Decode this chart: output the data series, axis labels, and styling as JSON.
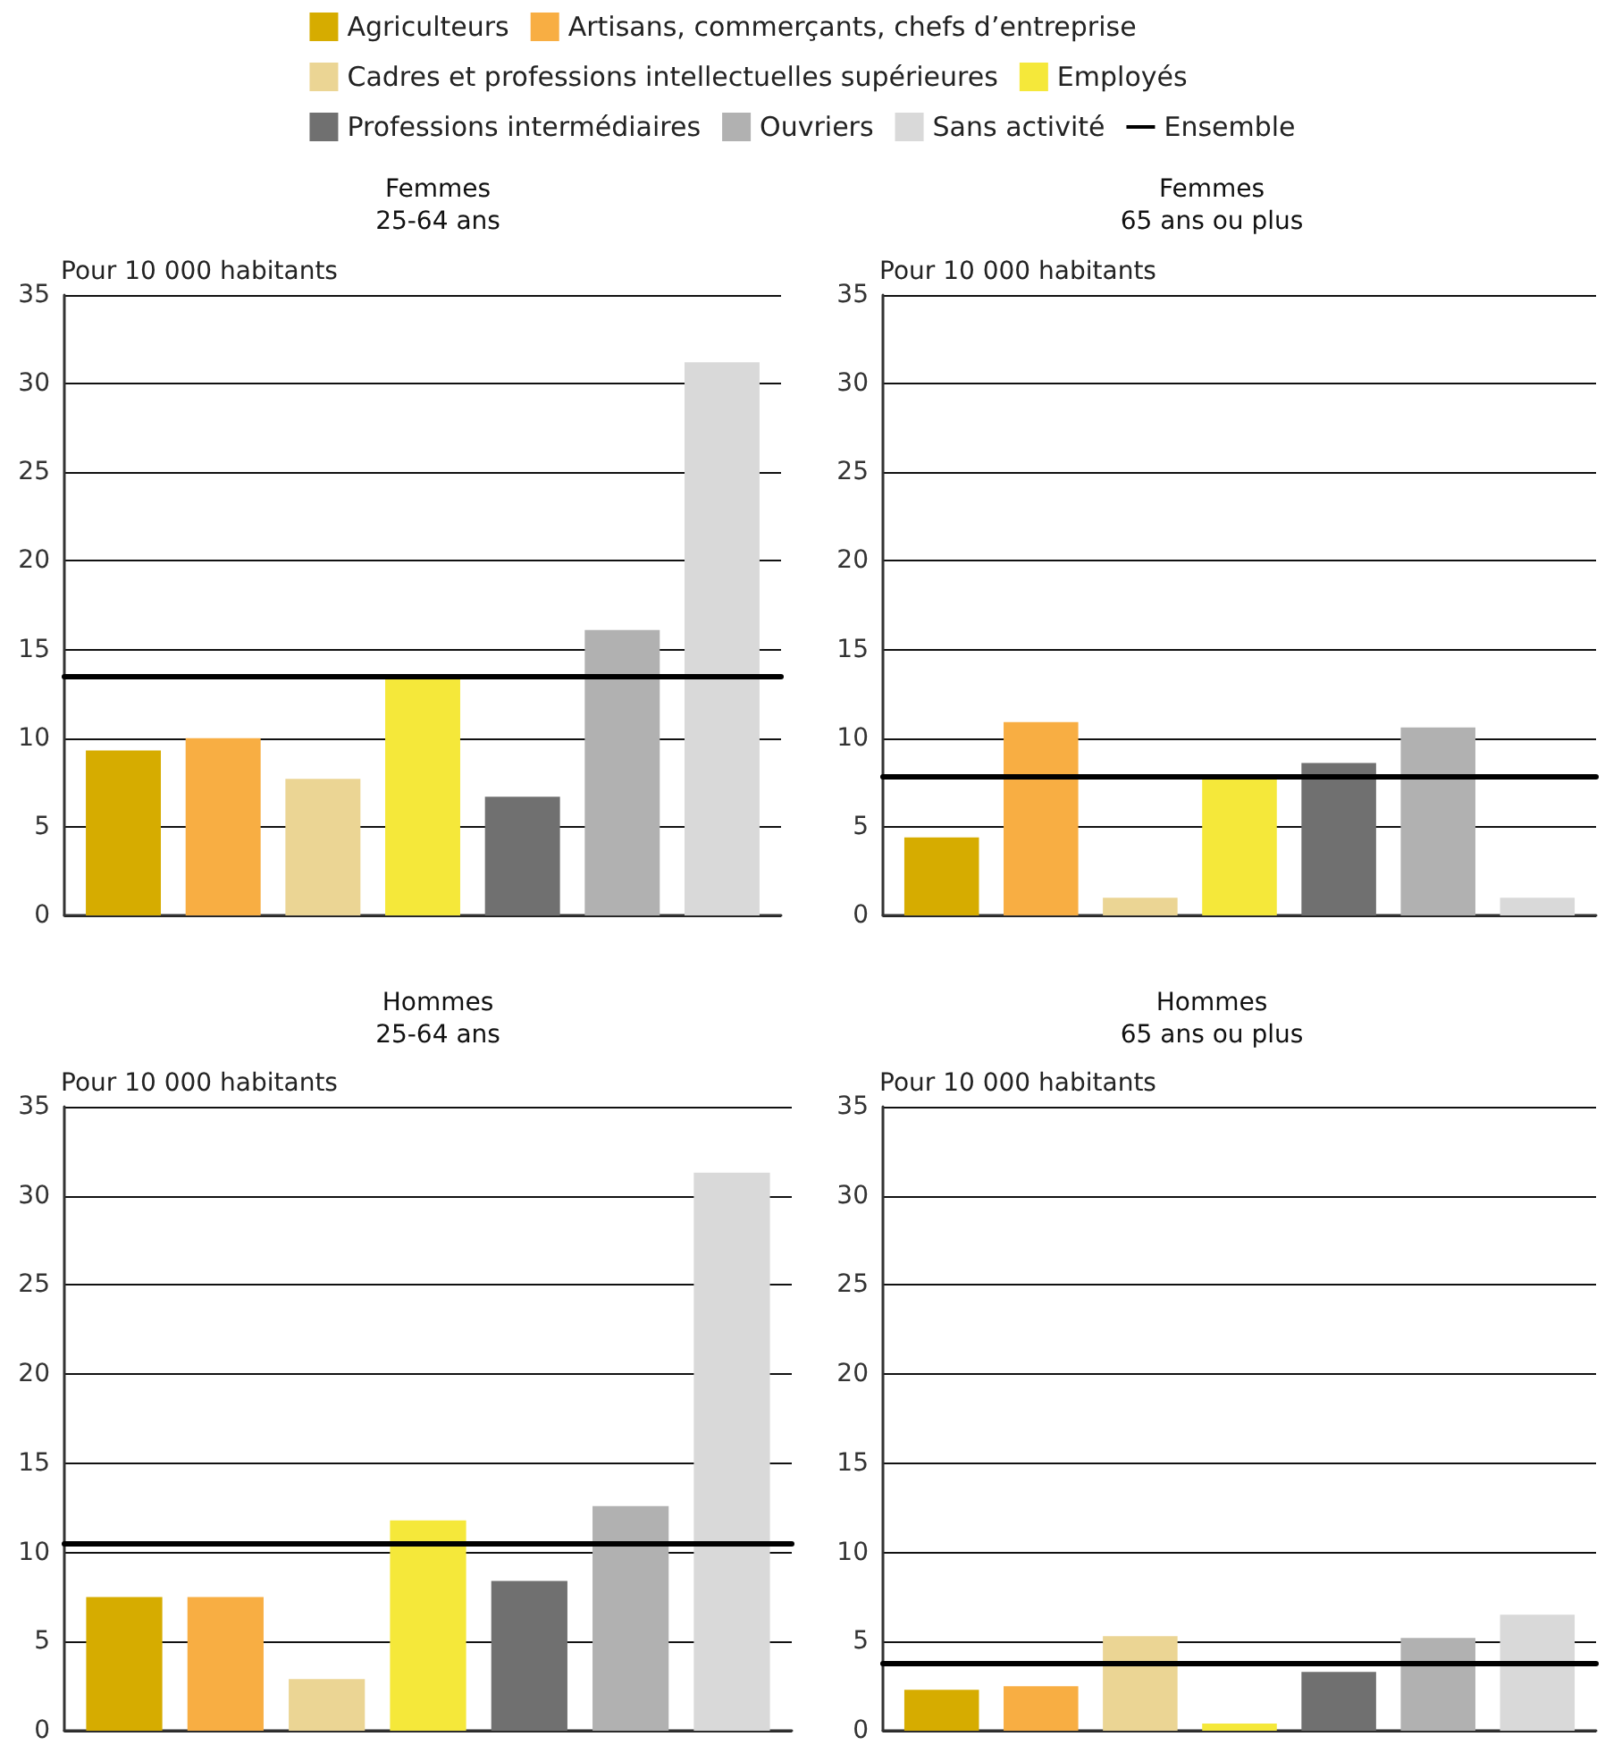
{
  "chart_data": [
    {
      "type": "bar",
      "title": "Femmes",
      "subtitle": "25-64 ans",
      "ylabel": "Pour 10 000 habitants",
      "categories": [
        null
      ],
      "legend": "top",
      "grid": "y",
      "ylim": [
        0,
        35
      ],
      "yticks": [
        0,
        5,
        10,
        15,
        20,
        25,
        30,
        35
      ],
      "series": [
        {
          "name": "Agriculteurs",
          "color": "#d6ac00",
          "values": [
            9.3
          ]
        },
        {
          "name": "Artisans, commerçants, chefs d’entreprise",
          "color": "#f8ae43",
          "values": [
            10.0
          ]
        },
        {
          "name": "Cadres et professions intellectuelles supérieures",
          "color": "#ebd594",
          "values": [
            7.7
          ]
        },
        {
          "name": "Employés",
          "color": "#f5e83a",
          "values": [
            13.5
          ]
        },
        {
          "name": "Professions intermédiaires",
          "color": "#707070",
          "values": [
            6.7
          ]
        },
        {
          "name": "Ouvriers",
          "color": "#b1b1b1",
          "values": [
            16.1
          ]
        },
        {
          "name": "Sans activité",
          "color": "#d9d9d9",
          "values": [
            31.2
          ]
        }
      ],
      "ref_lines": [
        {
          "axis": "y",
          "value": 13.5,
          "label": "Ensemble",
          "color": "#000000"
        }
      ]
    },
    {
      "type": "bar",
      "title": "Femmes",
      "subtitle": "65 ans ou plus",
      "ylabel": "Pour 10 000 habitants",
      "categories": [
        null
      ],
      "grid": "y",
      "ylim": [
        0,
        35
      ],
      "yticks": [
        0,
        5,
        10,
        15,
        20,
        25,
        30,
        35
      ],
      "series": [
        {
          "color": "#d6ac00",
          "values": [
            4.4
          ]
        },
        {
          "color": "#f8ae43",
          "values": [
            10.9
          ]
        },
        {
          "color": "#ebd594",
          "values": [
            1.0
          ]
        },
        {
          "color": "#f5e83a",
          "values": [
            7.8
          ]
        },
        {
          "color": "#707070",
          "values": [
            8.6
          ]
        },
        {
          "color": "#b1b1b1",
          "values": [
            10.6
          ]
        },
        {
          "color": "#d9d9d9",
          "values": [
            1.0
          ]
        }
      ],
      "ref_lines": [
        {
          "axis": "y",
          "value": 7.8,
          "color": "#000000"
        }
      ]
    },
    {
      "type": "bar",
      "title": "Hommes",
      "subtitle": "25-64 ans",
      "ylabel": "Pour 10 000 habitants",
      "categories": [
        null
      ],
      "grid": "y",
      "ylim": [
        0,
        35
      ],
      "yticks": [
        0,
        5,
        10,
        15,
        20,
        25,
        30,
        35
      ],
      "series": [
        {
          "color": "#d6ac00",
          "values": [
            7.5
          ]
        },
        {
          "color": "#f8ae43",
          "values": [
            7.5
          ]
        },
        {
          "color": "#ebd594",
          "values": [
            2.9
          ]
        },
        {
          "color": "#f5e83a",
          "values": [
            11.8
          ]
        },
        {
          "color": "#707070",
          "values": [
            8.4
          ]
        },
        {
          "color": "#b1b1b1",
          "values": [
            12.6
          ]
        },
        {
          "color": "#d9d9d9",
          "values": [
            31.3
          ]
        }
      ],
      "ref_lines": [
        {
          "axis": "y",
          "value": 10.5,
          "color": "#000000"
        }
      ]
    },
    {
      "type": "bar",
      "title": "Hommes",
      "subtitle": "65 ans ou plus",
      "ylabel": "Pour 10 000 habitants",
      "categories": [
        null
      ],
      "grid": "y",
      "ylim": [
        0,
        35
      ],
      "yticks": [
        0,
        5,
        10,
        15,
        20,
        25,
        30,
        35
      ],
      "series": [
        {
          "color": "#d6ac00",
          "values": [
            2.3
          ]
        },
        {
          "color": "#f8ae43",
          "values": [
            2.5
          ]
        },
        {
          "color": "#ebd594",
          "values": [
            5.3
          ]
        },
        {
          "color": "#f5e83a",
          "values": [
            0.4
          ]
        },
        {
          "color": "#707070",
          "values": [
            3.3
          ]
        },
        {
          "color": "#b1b1b1",
          "values": [
            5.2
          ]
        },
        {
          "color": "#d9d9d9",
          "values": [
            6.5
          ]
        }
      ],
      "ref_lines": [
        {
          "axis": "y",
          "value": 3.8,
          "color": "#000000"
        }
      ]
    }
  ]
}
